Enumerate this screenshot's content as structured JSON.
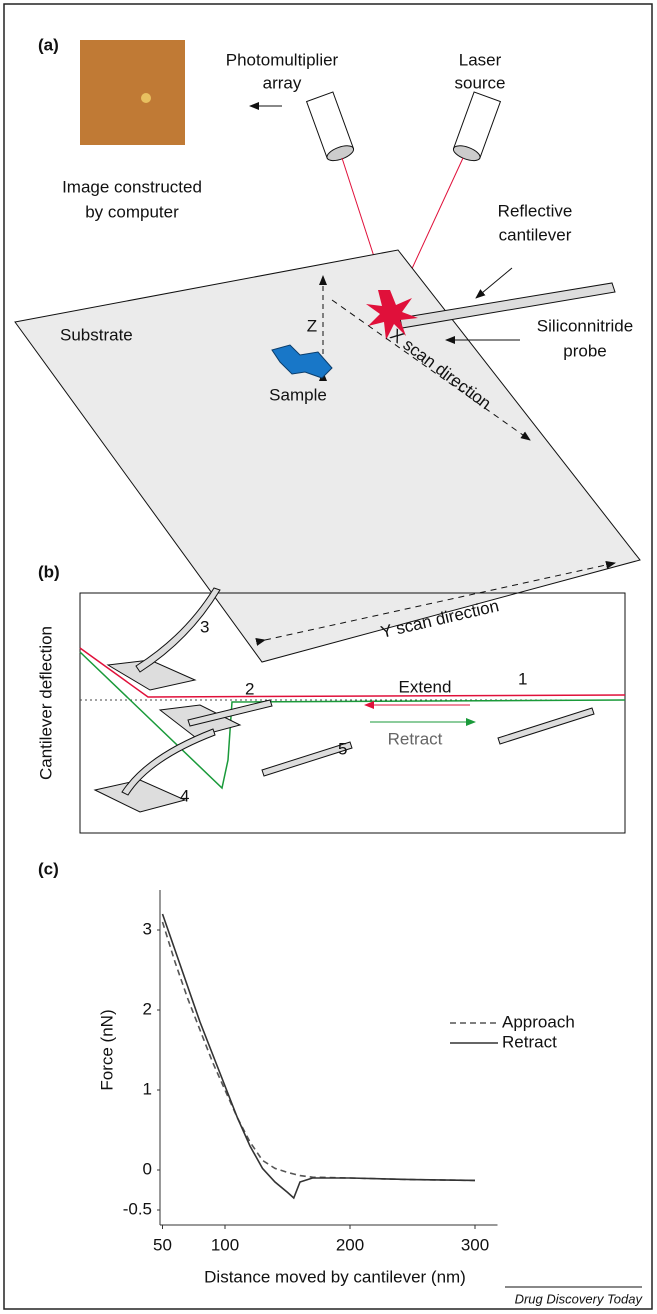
{
  "panel_a": {
    "label": "(a)",
    "image_caption": [
      "Image constructed",
      "by computer"
    ],
    "detector": [
      "Photomultiplier",
      "array"
    ],
    "laser": [
      "Laser",
      "source"
    ],
    "cantilever": [
      "Reflective",
      "cantilever"
    ],
    "probe": [
      "Siliconnitride",
      "probe"
    ],
    "substrate": "Substrate",
    "sample": "Sample",
    "z": "Z",
    "x_scan": "X scan direction",
    "y_scan": "Y scan direction"
  },
  "panel_b": {
    "label": "(b)",
    "y_label": "Cantilever deflection",
    "extend": "Extend",
    "retract": "Retract",
    "steps": [
      "1",
      "2",
      "3",
      "4",
      "5"
    ]
  },
  "chart_data": {
    "type": "line",
    "panel_label": "(c)",
    "x_label": "Distance moved by cantilever (nm)",
    "y_label": "Force (nN)",
    "x": [
      50,
      60,
      70,
      80,
      90,
      100,
      110,
      120,
      130,
      140,
      150,
      155,
      160,
      170,
      200,
      250,
      300
    ],
    "series": [
      {
        "name": "Approach",
        "color": "#555555",
        "style": "dashed",
        "values": [
          3.1,
          2.6,
          2.15,
          1.75,
          1.35,
          1.0,
          0.65,
          0.35,
          0.12,
          0.02,
          -0.03,
          -0.05,
          -0.07,
          -0.09,
          -0.1,
          -0.12,
          -0.13
        ]
      },
      {
        "name": "Retract",
        "color": "#333333",
        "style": "solid",
        "values": [
          3.2,
          2.75,
          2.3,
          1.85,
          1.45,
          1.05,
          0.65,
          0.3,
          0.02,
          -0.15,
          -0.28,
          -0.35,
          -0.15,
          -0.1,
          -0.1,
          -0.12,
          -0.13
        ]
      }
    ],
    "xlim": [
      48,
      318
    ],
    "xticks": [
      50,
      100,
      200,
      300
    ],
    "ylim": [
      -0.5,
      3.5
    ],
    "yticks": [
      -0.5,
      0,
      1,
      2,
      3
    ],
    "grid": false
  },
  "footer": "Drug Discovery Today"
}
